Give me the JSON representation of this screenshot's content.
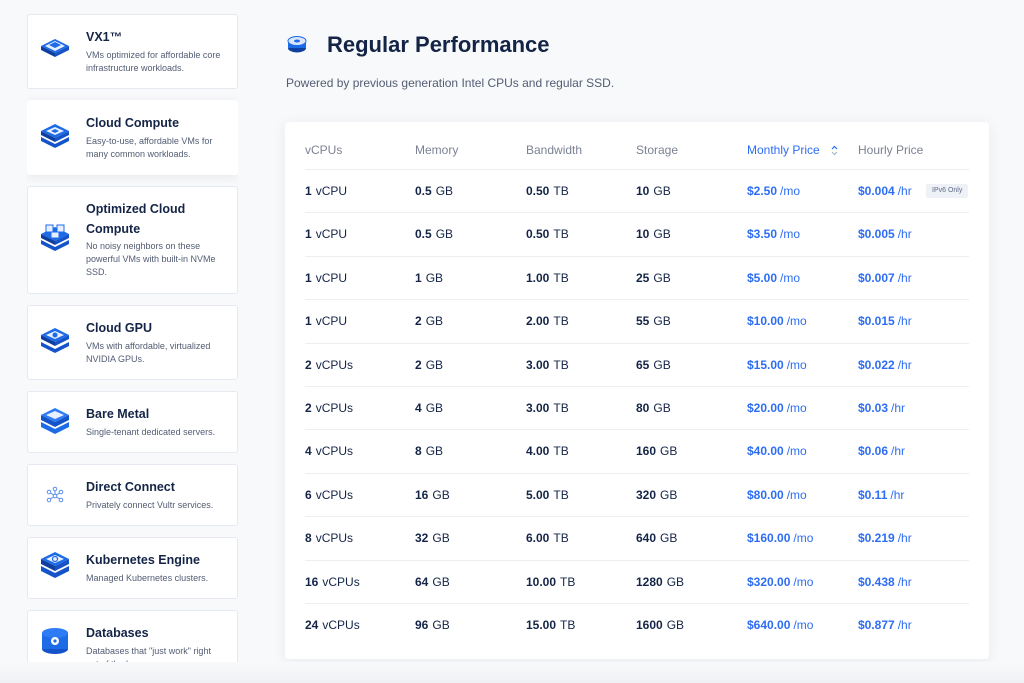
{
  "sidebar": {
    "items": [
      {
        "title": "VX1™",
        "desc": "VMs optimized for affordable core infrastructure workloads.",
        "icon": "vx1-server-icon"
      },
      {
        "title": "Cloud Compute",
        "desc": "Easy-to-use, affordable VMs for many common workloads.",
        "icon": "cloud-compute-icon"
      },
      {
        "title": "Optimized Cloud Compute",
        "desc": "No noisy neighbors on these powerful VMs with built-in NVMe SSD.",
        "icon": "optimized-cloud-compute-icon"
      },
      {
        "title": "Cloud GPU",
        "desc": "VMs with affordable, virtualized NVIDIA GPUs.",
        "icon": "cloud-gpu-icon"
      },
      {
        "title": "Bare Metal",
        "desc": "Single-tenant dedicated servers.",
        "icon": "bare-metal-icon"
      },
      {
        "title": "Direct Connect",
        "desc": "Privately connect Vultr services.",
        "icon": "direct-connect-icon"
      },
      {
        "title": "Kubernetes Engine",
        "desc": "Managed Kubernetes clusters.",
        "icon": "kubernetes-icon"
      },
      {
        "title": "Databases",
        "desc": "Databases that \"just work\" right out of the box.",
        "icon": "database-icon"
      }
    ]
  },
  "main": {
    "title": "Regular Performance",
    "subtitle": "Powered by previous generation Intel CPUs and regular SSD.",
    "header_icon": "disk-stack-icon"
  },
  "table": {
    "columns": [
      "vCPUs",
      "Memory",
      "Bandwidth",
      "Storage",
      "Monthly Price",
      "Hourly Price"
    ],
    "rows": [
      {
        "cpu": "1",
        "cpu_u": "vCPU",
        "mem": "0.5",
        "mem_u": "GB",
        "bw": "0.50",
        "bw_u": "TB",
        "st": "10",
        "st_u": "GB",
        "mo": "$2.50",
        "mo_u": "/mo",
        "hr": "$0.004",
        "hr_u": "/hr",
        "badge": "IPv6 Only"
      },
      {
        "cpu": "1",
        "cpu_u": "vCPU",
        "mem": "0.5",
        "mem_u": "GB",
        "bw": "0.50",
        "bw_u": "TB",
        "st": "10",
        "st_u": "GB",
        "mo": "$3.50",
        "mo_u": "/mo",
        "hr": "$0.005",
        "hr_u": "/hr"
      },
      {
        "cpu": "1",
        "cpu_u": "vCPU",
        "mem": "1",
        "mem_u": "GB",
        "bw": "1.00",
        "bw_u": "TB",
        "st": "25",
        "st_u": "GB",
        "mo": "$5.00",
        "mo_u": "/mo",
        "hr": "$0.007",
        "hr_u": "/hr"
      },
      {
        "cpu": "1",
        "cpu_u": "vCPU",
        "mem": "2",
        "mem_u": "GB",
        "bw": "2.00",
        "bw_u": "TB",
        "st": "55",
        "st_u": "GB",
        "mo": "$10.00",
        "mo_u": "/mo",
        "hr": "$0.015",
        "hr_u": "/hr"
      },
      {
        "cpu": "2",
        "cpu_u": "vCPUs",
        "mem": "2",
        "mem_u": "GB",
        "bw": "3.00",
        "bw_u": "TB",
        "st": "65",
        "st_u": "GB",
        "mo": "$15.00",
        "mo_u": "/mo",
        "hr": "$0.022",
        "hr_u": "/hr"
      },
      {
        "cpu": "2",
        "cpu_u": "vCPUs",
        "mem": "4",
        "mem_u": "GB",
        "bw": "3.00",
        "bw_u": "TB",
        "st": "80",
        "st_u": "GB",
        "mo": "$20.00",
        "mo_u": "/mo",
        "hr": "$0.03",
        "hr_u": "/hr"
      },
      {
        "cpu": "4",
        "cpu_u": "vCPUs",
        "mem": "8",
        "mem_u": "GB",
        "bw": "4.00",
        "bw_u": "TB",
        "st": "160",
        "st_u": "GB",
        "mo": "$40.00",
        "mo_u": "/mo",
        "hr": "$0.06",
        "hr_u": "/hr"
      },
      {
        "cpu": "6",
        "cpu_u": "vCPUs",
        "mem": "16",
        "mem_u": "GB",
        "bw": "5.00",
        "bw_u": "TB",
        "st": "320",
        "st_u": "GB",
        "mo": "$80.00",
        "mo_u": "/mo",
        "hr": "$0.11",
        "hr_u": "/hr"
      },
      {
        "cpu": "8",
        "cpu_u": "vCPUs",
        "mem": "32",
        "mem_u": "GB",
        "bw": "6.00",
        "bw_u": "TB",
        "st": "640",
        "st_u": "GB",
        "mo": "$160.00",
        "mo_u": "/mo",
        "hr": "$0.219",
        "hr_u": "/hr"
      },
      {
        "cpu": "16",
        "cpu_u": "vCPUs",
        "mem": "64",
        "mem_u": "GB",
        "bw": "10.00",
        "bw_u": "TB",
        "st": "1280",
        "st_u": "GB",
        "mo": "$320.00",
        "mo_u": "/mo",
        "hr": "$0.438",
        "hr_u": "/hr"
      },
      {
        "cpu": "24",
        "cpu_u": "vCPUs",
        "mem": "96",
        "mem_u": "GB",
        "bw": "15.00",
        "bw_u": "TB",
        "st": "1600",
        "st_u": "GB",
        "mo": "$640.00",
        "mo_u": "/mo",
        "hr": "$0.877",
        "hr_u": "/hr"
      }
    ]
  },
  "colors": {
    "accent": "#2d6df5",
    "heading": "#142446",
    "muted": "#7b8294"
  }
}
